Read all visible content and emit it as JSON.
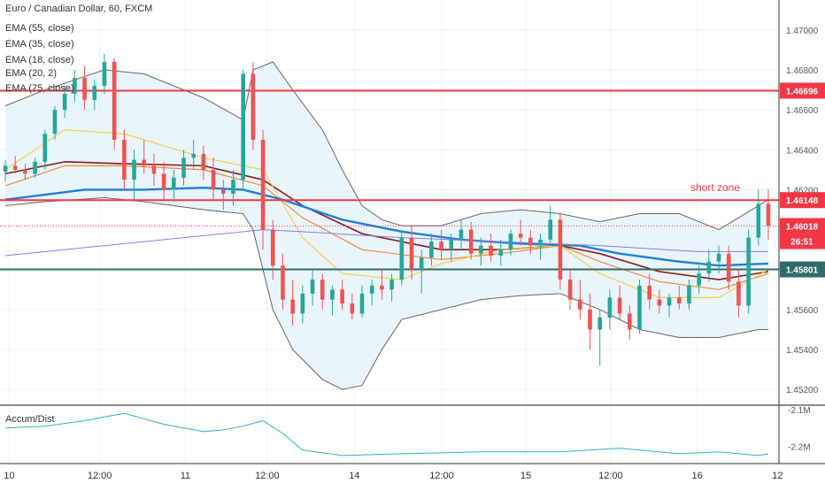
{
  "chart_data": {
    "type": "candlestick",
    "title": "Euro / Canadian Dollar, 60, FXCM",
    "indicators": [
      "EMA (55, close)",
      "EMA (35, close)",
      "EMA (18, close)",
      "EMA (20, 2)",
      "EMA (75, close)"
    ],
    "ylim": [
      1.4513,
      1.4715
    ],
    "y_ticks": [
      "1.47000",
      "1.46800",
      "1.46600",
      "1.46400",
      "1.46200",
      "1.45600",
      "1.45400",
      "1.45200"
    ],
    "x_ticks": [
      "10",
      "12:00",
      "11",
      "12:00",
      "14",
      "12:00",
      "15",
      "12:00",
      "16",
      "12"
    ],
    "levels": [
      {
        "label": "1.46696",
        "value": 1.46696,
        "color": "#f23645"
      },
      {
        "label": "1.46148",
        "value": 1.46148,
        "color": "#f23645"
      },
      {
        "label": "1.45801",
        "value": 1.45801,
        "color": "#2e6b6b"
      }
    ],
    "current_price": {
      "label": "1.46018",
      "value": 1.46018,
      "countdown": "26:51",
      "color": "#f23645"
    },
    "annotations": [
      {
        "text": "short zone",
        "color": "#f23645"
      }
    ],
    "candles": [
      [
        1.4629,
        1.4635,
        1.4624,
        1.4632
      ],
      [
        1.4632,
        1.4637,
        1.4628,
        1.463
      ],
      [
        1.463,
        1.4633,
        1.4625,
        1.4628
      ],
      [
        1.4628,
        1.4636,
        1.4626,
        1.4634
      ],
      [
        1.4634,
        1.465,
        1.463,
        1.4648
      ],
      [
        1.4648,
        1.4662,
        1.4645,
        1.466
      ],
      [
        1.466,
        1.4672,
        1.4656,
        1.4668
      ],
      [
        1.4668,
        1.468,
        1.4664,
        1.4676
      ],
      [
        1.4676,
        1.4682,
        1.466,
        1.4665
      ],
      [
        1.4665,
        1.4675,
        1.466,
        1.4672
      ],
      [
        1.4672,
        1.4688,
        1.4668,
        1.4684
      ],
      [
        1.4684,
        1.4686,
        1.464,
        1.4645
      ],
      [
        1.4645,
        1.465,
        1.462,
        1.4625
      ],
      [
        1.4625,
        1.464,
        1.4615,
        1.4635
      ],
      [
        1.4635,
        1.4645,
        1.4628,
        1.4632
      ],
      [
        1.4632,
        1.4638,
        1.4622,
        1.4628
      ],
      [
        1.4628,
        1.4634,
        1.4615,
        1.462
      ],
      [
        1.462,
        1.463,
        1.4614,
        1.4626
      ],
      [
        1.4626,
        1.464,
        1.4622,
        1.4636
      ],
      [
        1.4636,
        1.4645,
        1.463,
        1.4638
      ],
      [
        1.4638,
        1.4642,
        1.4625,
        1.463
      ],
      [
        1.463,
        1.4636,
        1.4615,
        1.462
      ],
      [
        1.462,
        1.4625,
        1.461,
        1.4618
      ],
      [
        1.4618,
        1.463,
        1.4612,
        1.4625
      ],
      [
        1.4625,
        1.468,
        1.462,
        1.4678
      ],
      [
        1.4678,
        1.4684,
        1.464,
        1.4645
      ],
      [
        1.4645,
        1.465,
        1.459,
        1.46
      ],
      [
        1.46,
        1.4605,
        1.4575,
        1.4582
      ],
      [
        1.4582,
        1.4588,
        1.456,
        1.4565
      ],
      [
        1.4565,
        1.4575,
        1.4552,
        1.4558
      ],
      [
        1.4558,
        1.4572,
        1.4553,
        1.4568
      ],
      [
        1.4568,
        1.458,
        1.4562,
        1.4575
      ],
      [
        1.4575,
        1.4578,
        1.456,
        1.4565
      ],
      [
        1.4565,
        1.4572,
        1.4557,
        1.457
      ],
      [
        1.457,
        1.4575,
        1.456,
        1.4563
      ],
      [
        1.4563,
        1.4568,
        1.4555,
        1.4558
      ],
      [
        1.4558,
        1.4572,
        1.4556,
        1.4568
      ],
      [
        1.4568,
        1.4575,
        1.4562,
        1.4572
      ],
      [
        1.4572,
        1.458,
        1.4565,
        1.457
      ],
      [
        1.457,
        1.4578,
        1.4564,
        1.4575
      ],
      [
        1.4575,
        1.46,
        1.4572,
        1.4596
      ],
      [
        1.4596,
        1.4602,
        1.4575,
        1.458
      ],
      [
        1.458,
        1.459,
        1.4568,
        1.4586
      ],
      [
        1.4586,
        1.4598,
        1.4582,
        1.4594
      ],
      [
        1.4594,
        1.46,
        1.4585,
        1.459
      ],
      [
        1.459,
        1.4598,
        1.4584,
        1.4595
      ],
      [
        1.4595,
        1.4605,
        1.459,
        1.46
      ],
      [
        1.46,
        1.4604,
        1.4585,
        1.4588
      ],
      [
        1.4588,
        1.4596,
        1.4582,
        1.4592
      ],
      [
        1.4592,
        1.4598,
        1.4584,
        1.4587
      ],
      [
        1.4587,
        1.4595,
        1.4582,
        1.459
      ],
      [
        1.459,
        1.46,
        1.4587,
        1.4598
      ],
      [
        1.4598,
        1.4605,
        1.4592,
        1.4596
      ],
      [
        1.4596,
        1.46,
        1.4588,
        1.4592
      ],
      [
        1.4592,
        1.4598,
        1.4585,
        1.4595
      ],
      [
        1.4595,
        1.4612,
        1.4592,
        1.4605
      ],
      [
        1.4605,
        1.4608,
        1.457,
        1.4575
      ],
      [
        1.4575,
        1.458,
        1.456,
        1.4565
      ],
      [
        1.4565,
        1.4575,
        1.4555,
        1.456
      ],
      [
        1.456,
        1.4568,
        1.454,
        1.455
      ],
      [
        1.455,
        1.456,
        1.4532,
        1.4556
      ],
      [
        1.4556,
        1.457,
        1.455,
        1.4566
      ],
      [
        1.4566,
        1.4572,
        1.4555,
        1.4558
      ],
      [
        1.4558,
        1.4562,
        1.4545,
        1.455
      ],
      [
        1.455,
        1.4575,
        1.4548,
        1.4572
      ],
      [
        1.4572,
        1.4578,
        1.456,
        1.4565
      ],
      [
        1.4565,
        1.457,
        1.4558,
        1.4562
      ],
      [
        1.4562,
        1.4568,
        1.4556,
        1.4566
      ],
      [
        1.4566,
        1.4572,
        1.456,
        1.4563
      ],
      [
        1.4563,
        1.4575,
        1.456,
        1.4572
      ],
      [
        1.4572,
        1.4582,
        1.4568,
        1.4578
      ],
      [
        1.4578,
        1.459,
        1.4574,
        1.4584
      ],
      [
        1.4584,
        1.4592,
        1.4578,
        1.4588
      ],
      [
        1.4588,
        1.4592,
        1.457,
        1.4574
      ],
      [
        1.4574,
        1.458,
        1.4556,
        1.4562
      ],
      [
        1.4562,
        1.46,
        1.4558,
        1.4596
      ],
      [
        1.4596,
        1.462,
        1.4592,
        1.4613
      ],
      [
        1.4613,
        1.462,
        1.4595,
        1.4602
      ]
    ],
    "emas": [
      {
        "name": "EMA (55, close)",
        "color": "#8b1a1a",
        "width": 1.6,
        "x": [
          0,
          6,
          12,
          20,
          26,
          30,
          36,
          44,
          50,
          56,
          60,
          66,
          72,
          77
        ],
        "y": [
          1.4628,
          1.4634,
          1.4633,
          1.4632,
          1.4625,
          1.4612,
          1.4598,
          1.459,
          1.459,
          1.4592,
          1.4588,
          1.4579,
          1.4575,
          1.4579
        ]
      },
      {
        "name": "EMA (35, close)",
        "color": "#f08a3c",
        "width": 1.2,
        "x": [
          0,
          6,
          12,
          20,
          26,
          30,
          36,
          44,
          50,
          56,
          60,
          66,
          72,
          77
        ],
        "y": [
          1.4622,
          1.4632,
          1.4632,
          1.463,
          1.4622,
          1.4606,
          1.459,
          1.4585,
          1.4588,
          1.4592,
          1.4584,
          1.4574,
          1.457,
          1.4578
        ]
      },
      {
        "name": "EMA (18, close)",
        "color": "#f0d24a",
        "width": 1.2,
        "x": [
          0,
          6,
          12,
          20,
          26,
          30,
          34,
          40,
          44,
          50,
          56,
          60,
          66,
          72,
          77
        ],
        "y": [
          1.463,
          1.465,
          1.4648,
          1.4636,
          1.463,
          1.4596,
          1.4578,
          1.4575,
          1.4583,
          1.459,
          1.4592,
          1.4578,
          1.4566,
          1.4566,
          1.458
        ]
      },
      {
        "name": "EMA (75, close)",
        "color": "#1f7fd6",
        "width": 2.4,
        "x": [
          0,
          8,
          14,
          20,
          24,
          28,
          34,
          40,
          46,
          52,
          58,
          62,
          68,
          72,
          77
        ],
        "y": [
          1.4615,
          1.462,
          1.462,
          1.4621,
          1.462,
          1.4615,
          1.4605,
          1.4599,
          1.4595,
          1.4593,
          1.4592,
          1.4588,
          1.4584,
          1.4582,
          1.4583
        ]
      },
      {
        "name": "EMA",
        "color": "#8c7ce0",
        "width": 1,
        "x": [
          0,
          10,
          20,
          26,
          30,
          40,
          50,
          60,
          70,
          77
        ],
        "y": [
          1.4587,
          1.4592,
          1.4597,
          1.46,
          1.4599,
          1.4596,
          1.4594,
          1.4592,
          1.4589,
          1.4589
        ]
      }
    ],
    "bands": {
      "x": [
        0,
        4,
        10,
        14,
        20,
        24,
        25,
        27,
        29,
        32,
        34,
        36,
        38,
        40,
        44,
        48,
        52,
        56,
        60,
        64,
        68,
        72,
        76,
        77
      ],
      "upper": [
        1.4662,
        1.467,
        1.468,
        1.4678,
        1.4666,
        1.4655,
        1.468,
        1.4684,
        1.467,
        1.465,
        1.463,
        1.4612,
        1.4605,
        1.4602,
        1.4602,
        1.4608,
        1.461,
        1.4608,
        1.4604,
        1.4608,
        1.4608,
        1.46,
        1.4612,
        1.4615
      ],
      "lower": [
        1.4612,
        1.4614,
        1.4616,
        1.4614,
        1.461,
        1.4608,
        1.46,
        1.456,
        1.454,
        1.4525,
        1.452,
        1.4522,
        1.454,
        1.4555,
        1.456,
        1.4565,
        1.4567,
        1.4568,
        1.456,
        1.455,
        1.4546,
        1.4546,
        1.455,
        1.455
      ]
    },
    "accum_dist": {
      "name": "Accum/Dist",
      "y_ticks": [
        "-2.1M",
        "-2.2M"
      ],
      "x": [
        0,
        4,
        8,
        12,
        16,
        20,
        22,
        24,
        26,
        28,
        30,
        34,
        40,
        48,
        56,
        62,
        68,
        72,
        76,
        77
      ],
      "y": [
        -2.15,
        -2.145,
        -2.13,
        -2.11,
        -2.14,
        -2.16,
        -2.155,
        -2.145,
        -2.13,
        -2.165,
        -2.21,
        -2.225,
        -2.22,
        -2.215,
        -2.215,
        -2.205,
        -2.22,
        -2.215,
        -2.225,
        -2.22
      ]
    }
  }
}
